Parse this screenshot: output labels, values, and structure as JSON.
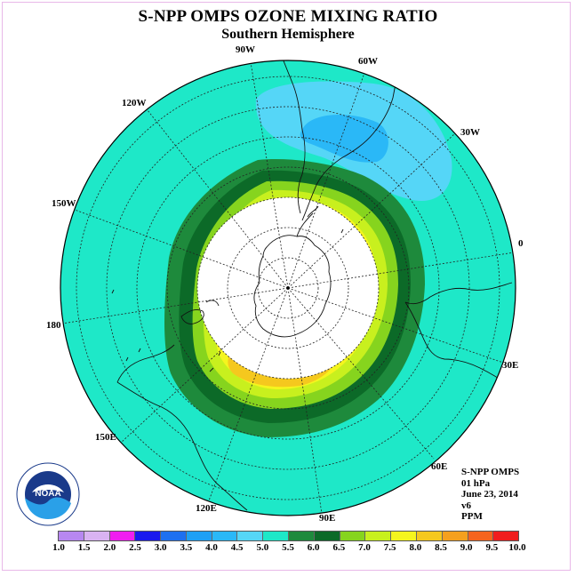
{
  "title": "S-NPP OMPS OZONE MIXING RATIO",
  "subtitle": "Southern Hemisphere",
  "longitude_labels": {
    "w90": "90W",
    "w60": "60W",
    "w30": "30W",
    "e0": "0",
    "e30": "30E",
    "e60": "60E",
    "e90": "90E",
    "e120": "120E",
    "e150": "150E",
    "lon180": "180",
    "w150": "150W",
    "w120": "120W"
  },
  "info": {
    "instrument": "S-NPP OMPS",
    "level": "01 hPa",
    "date": "June 23, 2014",
    "version": "v6",
    "units": "PPM"
  },
  "logo": {
    "text": "NOAA",
    "ring_text": "NATIONAL OCEANIC AND ATMOSPHERIC ADMINISTRATION · U.S. DEPARTMENT OF COMMERCE"
  },
  "colorbar": {
    "ticks": [
      "1.0",
      "1.5",
      "2.0",
      "2.5",
      "3.0",
      "3.5",
      "4.0",
      "4.5",
      "5.0",
      "5.5",
      "6.0",
      "6.5",
      "7.0",
      "7.5",
      "8.0",
      "8.5",
      "9.0",
      "9.5",
      "10.0"
    ],
    "colors": [
      "#b787f0",
      "#d9b3f2",
      "#f01ef0",
      "#1a1aee",
      "#1e70f0",
      "#1ea0f5",
      "#2ab8f7",
      "#55d6f7",
      "#1ee8c8",
      "#1e8a3c",
      "#0c6a28",
      "#86d41e",
      "#c8f01e",
      "#f5f51e",
      "#f5c81e",
      "#f5a01e",
      "#f5641e",
      "#f01e1e",
      "#8c5a3c"
    ]
  },
  "map_colors": {
    "background": "#1ee8c8",
    "low_blue": "#55d6f7",
    "lower_blue": "#2ab8f7",
    "dark_green": "#0c6a28",
    "green": "#1e8a3c",
    "yellowgreen": "#86d41e",
    "lightyellow": "#c8f01e",
    "yellow": "#f5f51e",
    "orange": "#f5c81e",
    "polar_night": "#ffffff"
  }
}
